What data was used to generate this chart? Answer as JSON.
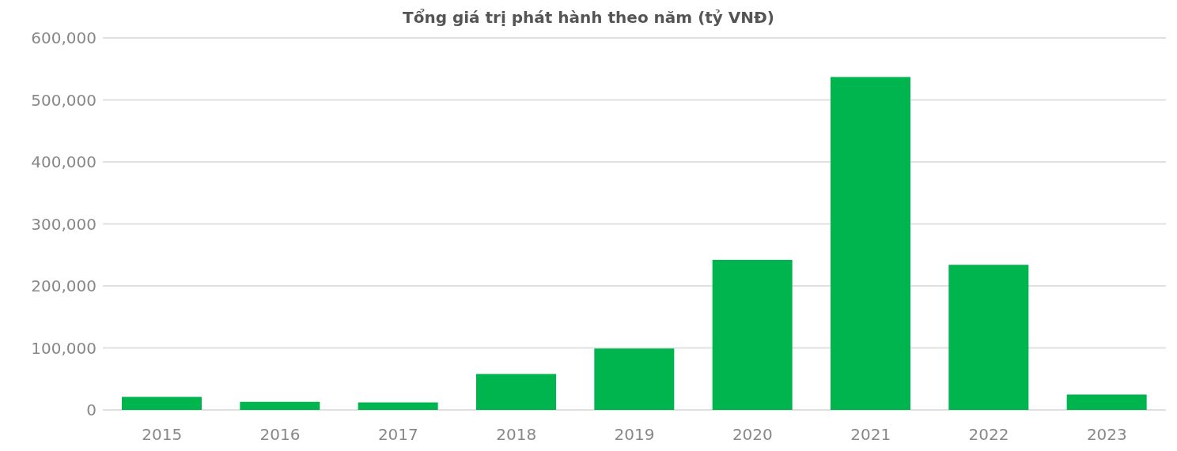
{
  "chart_data": {
    "type": "bar",
    "title": "Tổng giá trị phát hành theo năm (tỷ VNĐ)",
    "categories": [
      "2015",
      "2016",
      "2017",
      "2018",
      "2019",
      "2020",
      "2021",
      "2022",
      "2023"
    ],
    "values": [
      21000,
      13000,
      12000,
      58000,
      99000,
      242000,
      537000,
      234000,
      25000
    ],
    "color": "#00b44e",
    "ylim": [
      0,
      600000
    ],
    "yticks": [
      0,
      {
        "value": 100000,
        "label": "100,000"
      },
      {
        "value": 200000,
        "label": "200,000"
      },
      {
        "value": 300000,
        "label": "300,000"
      },
      {
        "value": 400000,
        "label": "400,000"
      },
      {
        "value": 500000,
        "label": "500,000"
      },
      {
        "value": 600000,
        "label": "600,000"
      }
    ],
    "grid": "y"
  }
}
